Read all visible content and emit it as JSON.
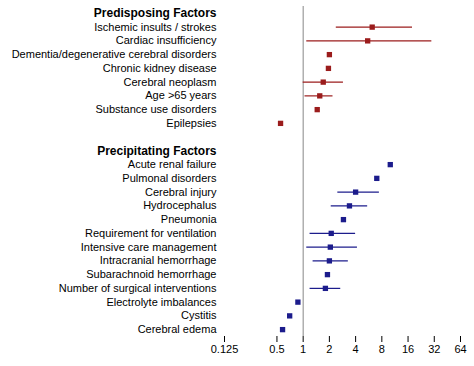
{
  "chart_data": {
    "type": "forest",
    "log": "x",
    "marker": "square",
    "xlim": [
      0.125,
      64
    ],
    "xticks": [
      0.125,
      0.5,
      1,
      2,
      4,
      8,
      16,
      32,
      64
    ],
    "reference": 1,
    "groups": [
      {
        "name": "Predisposing Factors",
        "color": "#9b1c1c",
        "categories": [
          "Ischemic insults / strokes",
          "Cardiac insufficiency",
          "Dementia/degenerative cerebral disorders",
          "Chronic kidney disease",
          "Cerebral neoplasm",
          "Age >65 years",
          "Substance use disorders",
          "Epilepsies"
        ],
        "values": [
          6.2,
          5.5,
          2.0,
          1.95,
          1.7,
          1.55,
          1.45,
          0.55
        ],
        "lower": [
          2.4,
          1.1,
          null,
          null,
          1.0,
          1.05,
          null,
          null
        ],
        "upper": [
          18,
          30,
          null,
          null,
          2.9,
          2.2,
          null,
          null
        ]
      },
      {
        "name": "Precipitating Factors",
        "color": "#1c1c8c",
        "categories": [
          "Acute renal failure",
          "Pulmonal disorders",
          "Cerebral injury",
          "Hydrocephalus",
          "Pneumonia",
          "Requirement for ventilation",
          "Intensive care management",
          "Intracranial hemorrhage",
          "Subarachnoid hemorrhage",
          "Number of surgical interventions",
          "Electrolyte imbalances",
          "Cystitis",
          "Cerebral edema"
        ],
        "values": [
          10,
          7,
          4.0,
          3.4,
          2.9,
          2.1,
          2.05,
          2.0,
          1.9,
          1.8,
          0.87,
          0.7,
          0.58
        ],
        "lower": [
          null,
          null,
          2.5,
          2.1,
          null,
          1.2,
          1.1,
          1.3,
          null,
          1.2,
          null,
          null,
          null
        ],
        "upper": [
          null,
          null,
          7.5,
          5.5,
          null,
          4.0,
          4.2,
          3.3,
          null,
          2.7,
          null,
          null,
          null
        ]
      }
    ]
  }
}
